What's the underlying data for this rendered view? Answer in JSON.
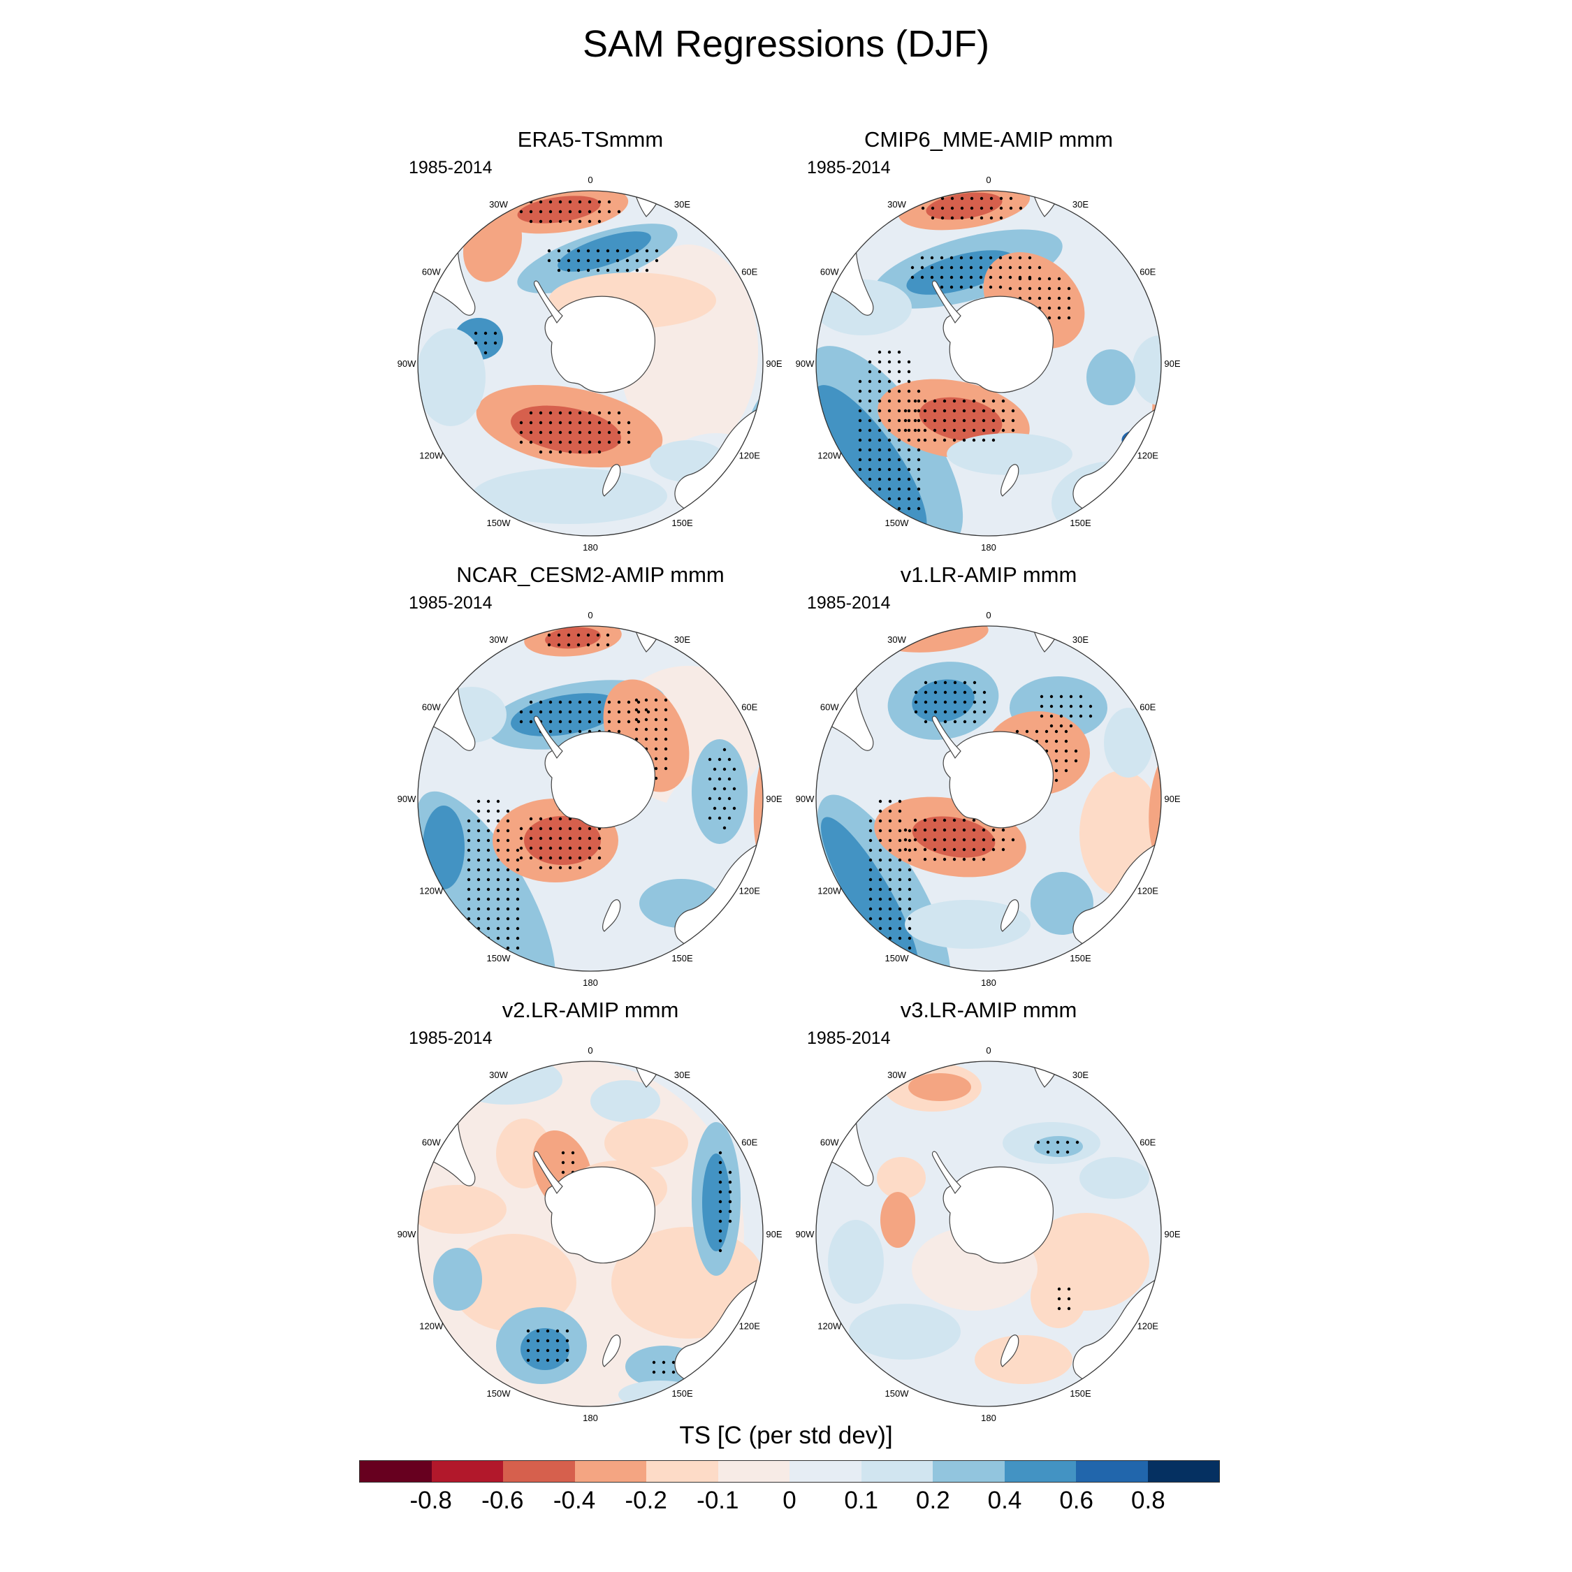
{
  "title": "SAM Regressions (DJF)",
  "panels": [
    {
      "title": "ERA5-TSmmm",
      "period": "1985-2014"
    },
    {
      "title": "CMIP6_MME-AMIP  mmm",
      "period": "1985-2014"
    },
    {
      "title": "NCAR_CESM2-AMIP  mmm",
      "period": "1985-2014"
    },
    {
      "title": "v1.LR-AMIP  mmm",
      "period": "1985-2014"
    },
    {
      "title": "v2.LR-AMIP  mmm",
      "period": "1985-2014"
    },
    {
      "title": "v3.LR-AMIP  mmm",
      "period": "1985-2014"
    }
  ],
  "longitude_labels": [
    "0",
    "30E",
    "60E",
    "90E",
    "120E",
    "150E",
    "180",
    "150W",
    "120W",
    "90W",
    "60W",
    "30W"
  ],
  "colorbar": {
    "title": "TS [C (per std dev)]",
    "labels": [
      "-0.8",
      "-0.6",
      "-0.4",
      "-0.2",
      "-0.1",
      "0",
      "0.1",
      "0.2",
      "0.4",
      "0.6",
      "0.8"
    ],
    "colors": [
      "#67001f",
      "#b2182b",
      "#d6604d",
      "#f4a582",
      "#fddbc7",
      "#f7ebe6",
      "#e6edf4",
      "#d1e5f0",
      "#92c5de",
      "#4393c3",
      "#2166ac",
      "#053061"
    ]
  },
  "projection": "south-polar-stereographic"
}
